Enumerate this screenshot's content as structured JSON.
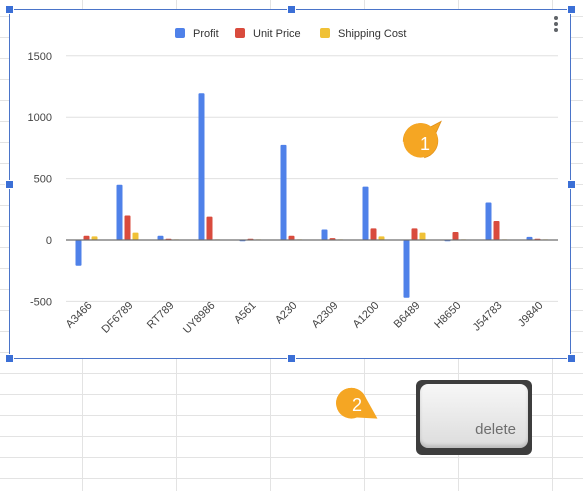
{
  "spreadsheet": {
    "chart": {
      "legend_position": "top",
      "menu_icon": "more-vert-icon",
      "colors": {
        "Profit": "#4f81e9",
        "Unit Price": "#d94b3d",
        "Shipping Cost": "#f0c136",
        "grid": "#e0e0e0",
        "axis": "#6e6e6e",
        "selection": "#4a74c9"
      },
      "chart_data": {
        "type": "bar",
        "categories": [
          "A3466",
          "DF6789",
          "RT789",
          "UY8986",
          "A561",
          "A230",
          "A2309",
          "A1200",
          "B6489",
          "H8650",
          "J54783",
          "J9840"
        ],
        "series": [
          {
            "name": "Profit",
            "values": [
              -210,
              450,
              35,
              1195,
              -10,
              775,
              85,
              435,
              -470,
              -10,
              305,
              25
            ]
          },
          {
            "name": "Unit Price",
            "values": [
              35,
              200,
              10,
              190,
              10,
              35,
              15,
              95,
              95,
              65,
              155,
              10
            ]
          },
          {
            "name": "Shipping Cost",
            "values": [
              30,
              60,
              5,
              5,
              5,
              5,
              5,
              30,
              60,
              5,
              5,
              5
            ]
          }
        ],
        "yticks": [
          "1500",
          "1000",
          "500",
          "0",
          "-500"
        ],
        "ylim": [
          -500,
          1500
        ],
        "grid": true
      }
    }
  },
  "callouts": [
    {
      "label": "1",
      "color": "#f5a623"
    },
    {
      "label": "2",
      "color": "#f5a623"
    }
  ],
  "keyboard_key": {
    "label": "delete"
  }
}
